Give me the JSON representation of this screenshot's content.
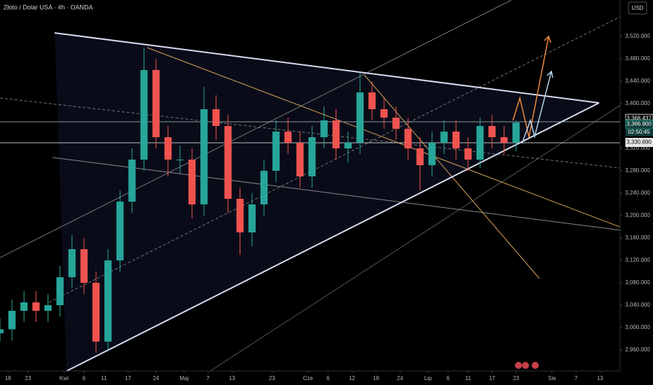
{
  "chart_data": {
    "type": "candlestick",
    "title": "Złoto / Dolar USA · 4h · OANDA",
    "currency": "USD",
    "x": [
      0,
      3,
      6,
      9,
      12,
      15,
      18,
      21,
      24,
      27,
      30,
      33,
      36,
      39,
      42,
      45,
      48,
      51,
      54,
      57,
      60,
      63,
      66,
      69,
      72,
      75,
      78,
      81,
      84,
      87,
      90,
      93,
      96,
      99,
      102,
      105,
      108,
      111,
      114,
      117,
      120,
      123,
      126,
      129
    ],
    "open": [
      2990,
      2997,
      3030,
      3045,
      3030,
      3040,
      3090,
      3140,
      3080,
      2975,
      3120,
      3225,
      3300,
      3460,
      3340,
      3300,
      3300,
      3220,
      3390,
      3360,
      3230,
      3170,
      3220,
      3280,
      3350,
      3330,
      3270,
      3340,
      3370,
      3320,
      3330,
      3420,
      3390,
      3375,
      3355,
      3320,
      3290,
      3330,
      3350,
      3320,
      3300,
      3360,
      3340,
      3330
    ],
    "high": [
      3017,
      3050,
      3065,
      3065,
      3060,
      3110,
      3165,
      3160,
      3100,
      3140,
      3245,
      3320,
      3500,
      3480,
      3360,
      3325,
      3320,
      3430,
      3415,
      3380,
      3250,
      3240,
      3300,
      3370,
      3375,
      3350,
      3360,
      3395,
      3390,
      3350,
      3455,
      3440,
      3410,
      3395,
      3375,
      3340,
      3350,
      3370,
      3370,
      3340,
      3375,
      3380,
      3360,
      3370
    ],
    "low": [
      2975,
      2977,
      3010,
      3010,
      3010,
      3020,
      3070,
      3060,
      2955,
      2960,
      3100,
      3205,
      3280,
      3320,
      3270,
      3275,
      3195,
      3200,
      3335,
      3205,
      3130,
      3145,
      3200,
      3260,
      3310,
      3250,
      3250,
      3320,
      3300,
      3295,
      3310,
      3370,
      3355,
      3335,
      3300,
      3245,
      3270,
      3310,
      3300,
      3280,
      3285,
      3320,
      3310,
      3315
    ],
    "close": [
      2997,
      3030,
      3045,
      3030,
      3040,
      3090,
      3140,
      3080,
      2975,
      3120,
      3225,
      3300,
      3460,
      3340,
      3300,
      3300,
      3220,
      3390,
      3360,
      3230,
      3170,
      3220,
      3280,
      3350,
      3330,
      3270,
      3340,
      3370,
      3320,
      3330,
      3420,
      3390,
      3375,
      3355,
      3320,
      3290,
      3330,
      3350,
      3320,
      3300,
      3360,
      3340,
      3330,
      3366
    ],
    "up_color": "#26a69a",
    "down_color": "#ef5350",
    "xlim": [
      0,
      155
    ],
    "ylim": [
      2922.5,
      3585
    ],
    "xticks": [
      {
        "value": 2,
        "label": "18"
      },
      {
        "value": 7,
        "label": "23"
      },
      {
        "value": 16,
        "label": "Kwi"
      },
      {
        "value": 21,
        "label": "6"
      },
      {
        "value": 26,
        "label": "11"
      },
      {
        "value": 32,
        "label": "17"
      },
      {
        "value": 39,
        "label": "24"
      },
      {
        "value": 46,
        "label": "Maj"
      },
      {
        "value": 52,
        "label": "7"
      },
      {
        "value": 58,
        "label": "13"
      },
      {
        "value": 68,
        "label": "23"
      },
      {
        "value": 77,
        "label": "Cze"
      },
      {
        "value": 82,
        "label": "6"
      },
      {
        "value": 88,
        "label": "12"
      },
      {
        "value": 94,
        "label": "18"
      },
      {
        "value": 100,
        "label": "24"
      },
      {
        "value": 107,
        "label": "Lip"
      },
      {
        "value": 112,
        "label": "6"
      },
      {
        "value": 117,
        "label": "11"
      },
      {
        "value": 123,
        "label": "17"
      },
      {
        "value": 129,
        "label": "23"
      },
      {
        "value": 138,
        "label": "Sie"
      },
      {
        "value": 144,
        "label": "7"
      },
      {
        "value": 150,
        "label": "13"
      }
    ],
    "yticks": [
      {
        "value": 2960,
        "label": "2,960.000"
      },
      {
        "value": 3000,
        "label": "3,000.000"
      },
      {
        "value": 3040,
        "label": "3,040.000"
      },
      {
        "value": 3080,
        "label": "3,080.000"
      },
      {
        "value": 3120,
        "label": "3,120.000"
      },
      {
        "value": 3160,
        "label": "3,160.000"
      },
      {
        "value": 3200,
        "label": "3,200.000"
      },
      {
        "value": 3240,
        "label": "3,240.000"
      },
      {
        "value": 3280,
        "label": "3,280.000"
      },
      {
        "value": 3320,
        "label": "3,320.000"
      },
      {
        "value": 3400,
        "label": "3,400.000"
      },
      {
        "value": 3440,
        "label": "3,440.000"
      },
      {
        "value": 3480,
        "label": "3,480.000"
      },
      {
        "value": 3520,
        "label": "3,520.000"
      }
    ],
    "price_labels": [
      {
        "value": 3368.437,
        "label": "3,368.437"
      },
      {
        "value": 3366.9,
        "label": "3,366.900"
      },
      {
        "value": 3330.69,
        "label": "3,330.690"
      }
    ],
    "countdown": "02:50:45"
  }
}
